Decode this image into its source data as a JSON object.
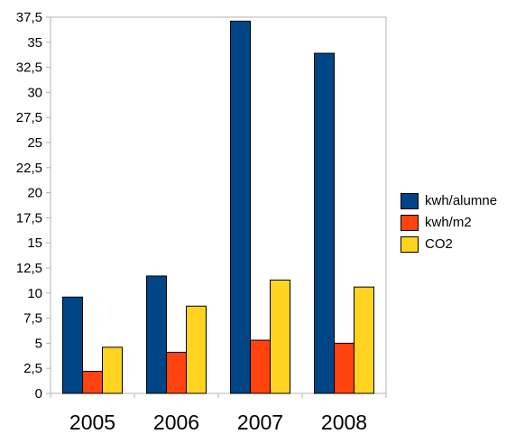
{
  "chart_data": {
    "type": "bar",
    "title": "",
    "xlabel": "",
    "ylabel": "",
    "categories": [
      "2005",
      "2006",
      "2007",
      "2008"
    ],
    "series": [
      {
        "name": "kwh/alumne",
        "color": "#004586",
        "values": [
          9.6,
          11.7,
          37.1,
          33.9
        ]
      },
      {
        "name": "kwh/m2",
        "color": "#ff420e",
        "values": [
          2.2,
          4.1,
          5.3,
          5.0
        ]
      },
      {
        "name": "CO2",
        "color": "#ffd320",
        "values": [
          4.6,
          8.7,
          11.3,
          10.6
        ]
      }
    ],
    "ylim": [
      0,
      37.5
    ],
    "yticks": [
      "0",
      "2,5",
      "5",
      "7,5",
      "10",
      "12,5",
      "15",
      "17,5",
      "20",
      "22,5",
      "25",
      "27,5",
      "30",
      "32,5",
      "35",
      "37,5"
    ],
    "grid": false,
    "legend_position": "right"
  }
}
